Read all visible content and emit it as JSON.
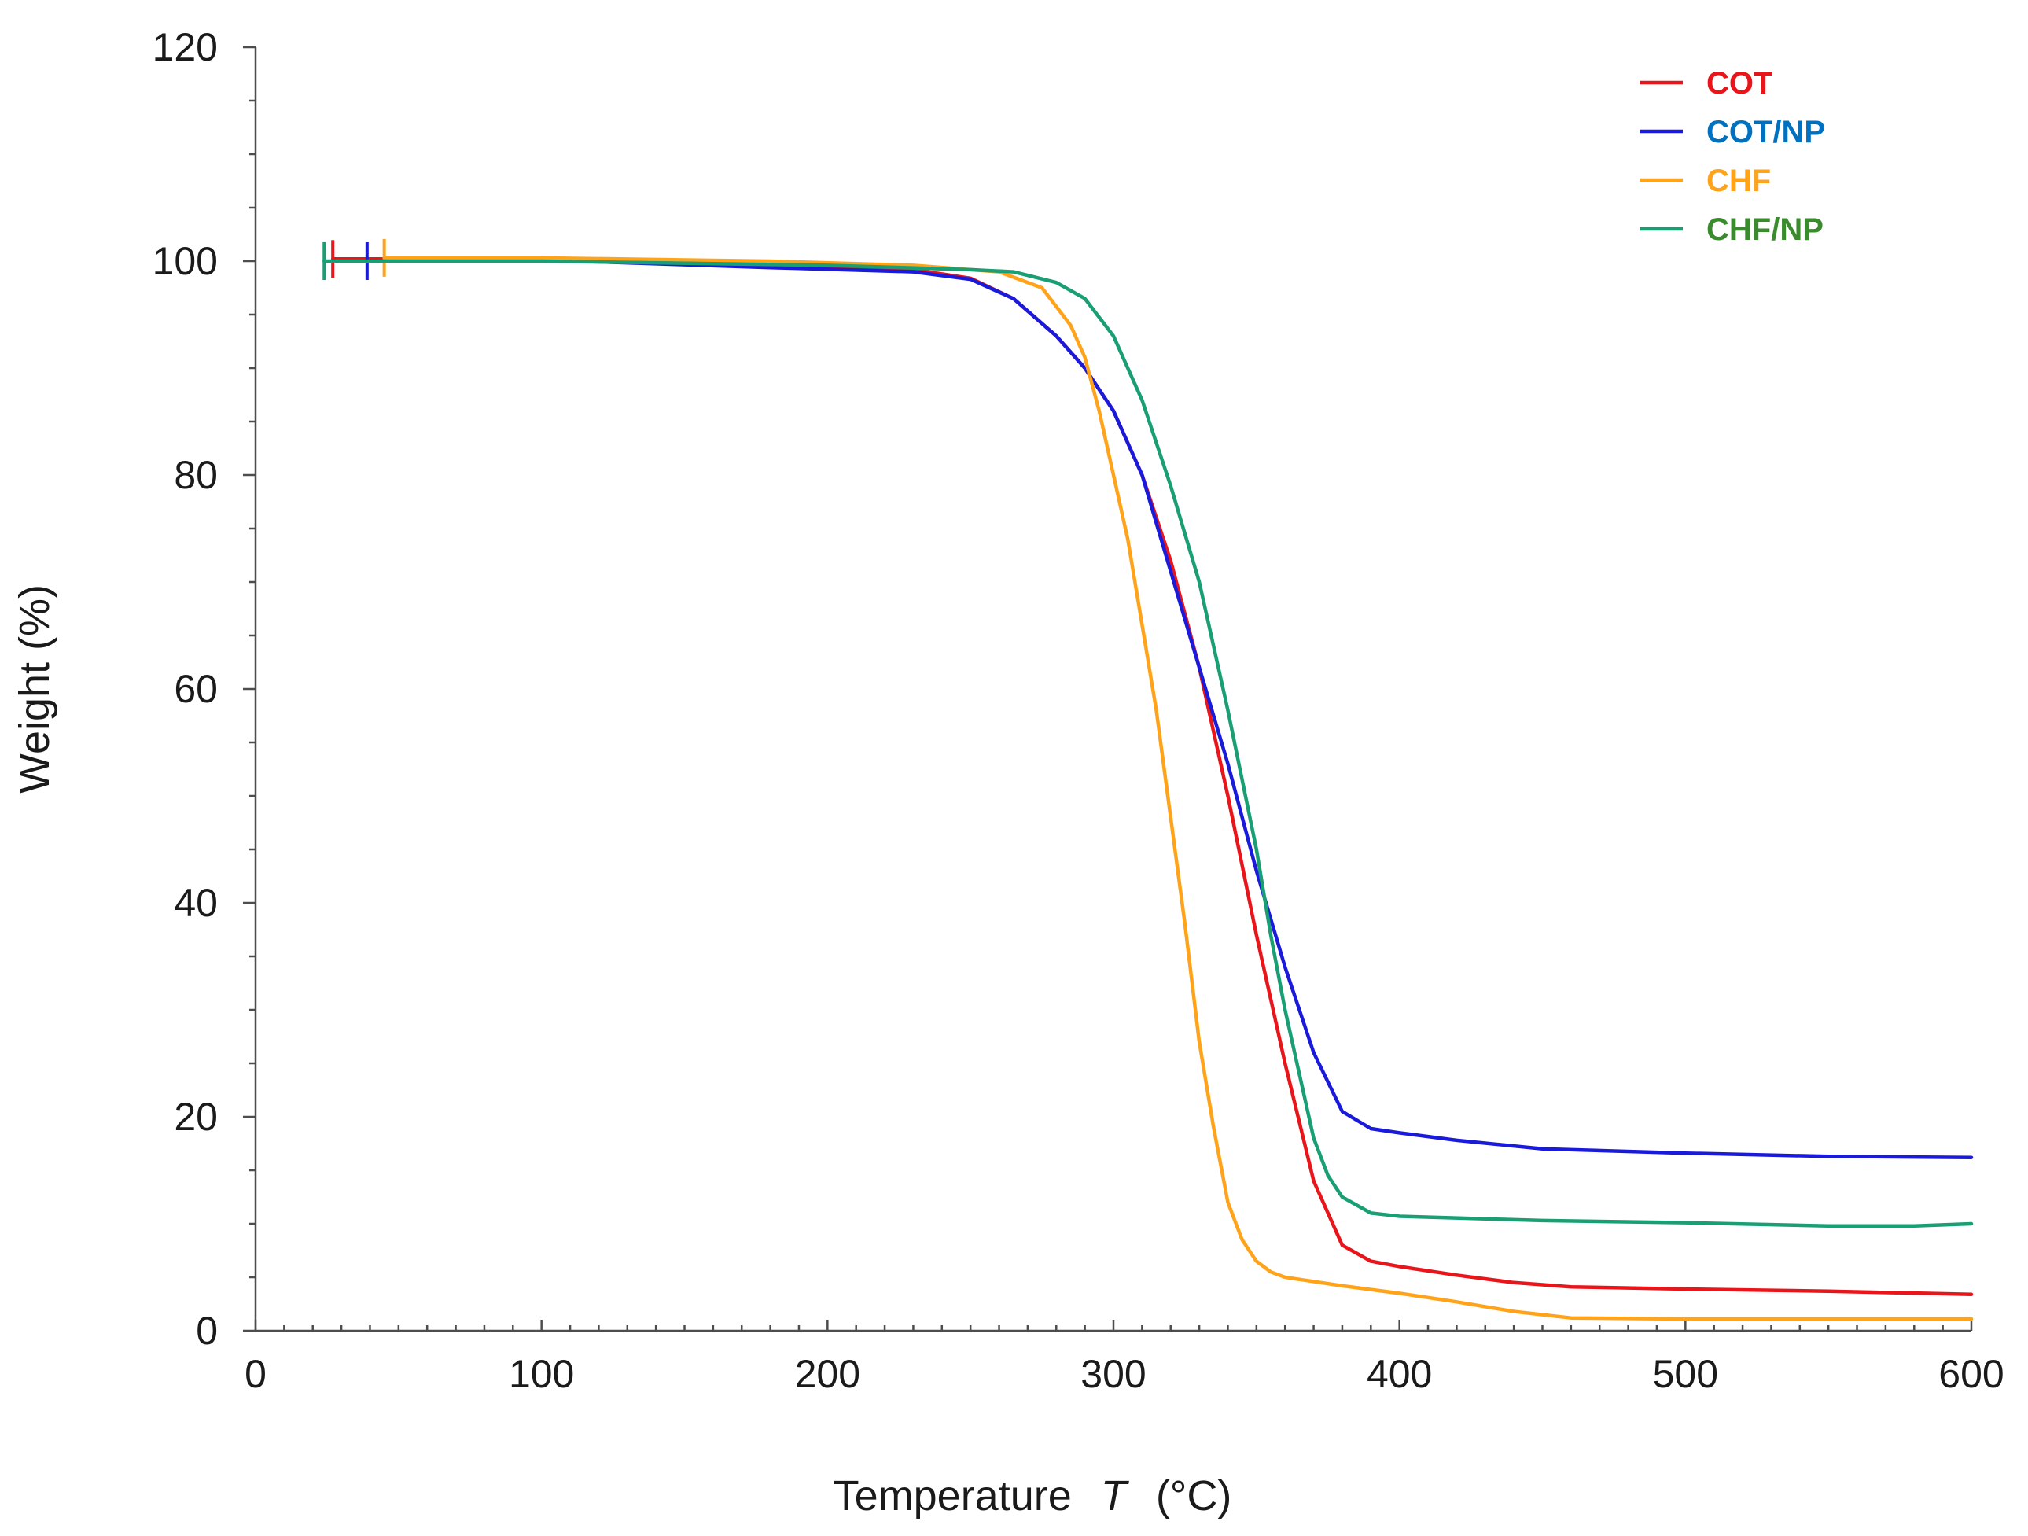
{
  "chart_data": {
    "type": "line",
    "title": "",
    "xlabel": {
      "prefix": "Temperature",
      "symbol": "T",
      "unit": "(°C)"
    },
    "ylabel": "Weight  (%)",
    "xlim": [
      0,
      600
    ],
    "ylim": [
      0,
      120
    ],
    "x_ticks": [
      0,
      100,
      200,
      300,
      400,
      500,
      600
    ],
    "y_ticks": [
      0,
      20,
      40,
      60,
      80,
      100,
      120
    ],
    "x_minor_step": 10,
    "y_minor_step": 5,
    "grid": false,
    "legend_position": "top-right",
    "series": [
      {
        "name": "COT",
        "color": "#e8151b",
        "label_color": "#e8151b",
        "start_marker_x": 27,
        "points": [
          [
            27,
            100.2
          ],
          [
            100,
            100.2
          ],
          [
            180,
            99.6
          ],
          [
            230,
            99.2
          ],
          [
            250,
            98.4
          ],
          [
            265,
            96.5
          ],
          [
            280,
            93
          ],
          [
            290,
            90
          ],
          [
            300,
            86
          ],
          [
            310,
            80
          ],
          [
            320,
            72
          ],
          [
            330,
            62
          ],
          [
            340,
            50
          ],
          [
            350,
            37
          ],
          [
            360,
            25
          ],
          [
            370,
            14
          ],
          [
            380,
            8
          ],
          [
            390,
            6.5
          ],
          [
            400,
            6
          ],
          [
            420,
            5.2
          ],
          [
            440,
            4.5
          ],
          [
            460,
            4.1
          ],
          [
            500,
            3.9
          ],
          [
            550,
            3.7
          ],
          [
            600,
            3.4
          ]
        ]
      },
      {
        "name": "COT/NP",
        "color": "#1a1adb",
        "label_color": "#0070c0",
        "start_marker_x": 39,
        "points": [
          [
            39,
            100
          ],
          [
            100,
            100.1
          ],
          [
            180,
            99.4
          ],
          [
            230,
            99
          ],
          [
            250,
            98.3
          ],
          [
            265,
            96.5
          ],
          [
            280,
            93
          ],
          [
            290,
            90
          ],
          [
            300,
            86
          ],
          [
            310,
            80
          ],
          [
            320,
            71
          ],
          [
            330,
            62
          ],
          [
            340,
            53
          ],
          [
            350,
            43
          ],
          [
            360,
            34
          ],
          [
            370,
            26
          ],
          [
            380,
            20.5
          ],
          [
            390,
            18.9
          ],
          [
            400,
            18.5
          ],
          [
            420,
            17.8
          ],
          [
            450,
            17
          ],
          [
            500,
            16.6
          ],
          [
            550,
            16.3
          ],
          [
            600,
            16.2
          ]
        ]
      },
      {
        "name": "CHF",
        "color": "#ffa31a",
        "label_color": "#ffa31a",
        "start_marker_x": 45,
        "points": [
          [
            45,
            100.3
          ],
          [
            100,
            100.3
          ],
          [
            180,
            100
          ],
          [
            230,
            99.6
          ],
          [
            260,
            99
          ],
          [
            275,
            97.5
          ],
          [
            285,
            94
          ],
          [
            290,
            91
          ],
          [
            295,
            86
          ],
          [
            300,
            80
          ],
          [
            305,
            74
          ],
          [
            310,
            66
          ],
          [
            315,
            58
          ],
          [
            320,
            48
          ],
          [
            325,
            38
          ],
          [
            330,
            27
          ],
          [
            335,
            19
          ],
          [
            340,
            12
          ],
          [
            345,
            8.5
          ],
          [
            350,
            6.5
          ],
          [
            355,
            5.5
          ],
          [
            360,
            5
          ],
          [
            380,
            4.2
          ],
          [
            400,
            3.5
          ],
          [
            420,
            2.7
          ],
          [
            440,
            1.8
          ],
          [
            460,
            1.2
          ],
          [
            500,
            1.1
          ],
          [
            600,
            1.1
          ]
        ]
      },
      {
        "name": "CHF/NP",
        "color": "#1a9e73",
        "label_color": "#3a8a2e",
        "start_marker_x": 24,
        "points": [
          [
            24,
            100
          ],
          [
            100,
            100
          ],
          [
            200,
            99.6
          ],
          [
            250,
            99.2
          ],
          [
            265,
            99
          ],
          [
            280,
            98
          ],
          [
            290,
            96.5
          ],
          [
            300,
            93
          ],
          [
            310,
            87
          ],
          [
            320,
            79
          ],
          [
            330,
            70
          ],
          [
            340,
            58
          ],
          [
            350,
            45
          ],
          [
            355,
            37
          ],
          [
            360,
            30
          ],
          [
            365,
            24
          ],
          [
            370,
            18
          ],
          [
            375,
            14.5
          ],
          [
            380,
            12.5
          ],
          [
            390,
            11
          ],
          [
            400,
            10.7
          ],
          [
            450,
            10.3
          ],
          [
            500,
            10.1
          ],
          [
            550,
            9.8
          ],
          [
            580,
            9.8
          ],
          [
            600,
            10
          ]
        ]
      }
    ]
  }
}
